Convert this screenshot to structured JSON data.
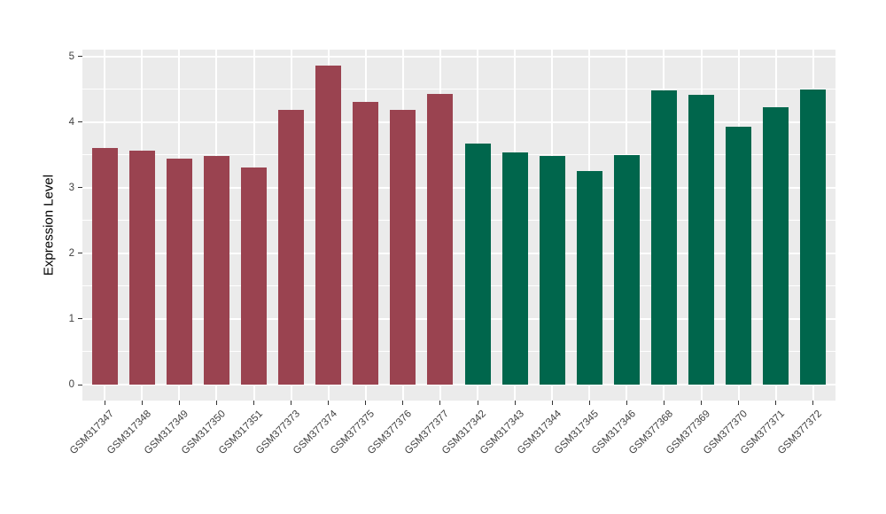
{
  "chart_data": {
    "type": "bar",
    "title": "",
    "xlabel": "",
    "ylabel": "Expression Level",
    "ylim": [
      0,
      5
    ],
    "yticks": [
      0,
      1,
      2,
      3,
      4,
      5
    ],
    "grid": "white major gridlines at integers, white minor gridlines at halves, vertical white gridlines at bar centers",
    "legend_position": "none",
    "panel_background": "#EBEBEB",
    "gridline_color": "#FFFFFF",
    "axis_text_color": "#404040",
    "axis_title_color": "#000000",
    "categories": [
      "GSM317347",
      "GSM317348",
      "GSM317349",
      "GSM317350",
      "GSM317351",
      "GSM377373",
      "GSM377374",
      "GSM377375",
      "GSM377376",
      "GSM377377",
      "GSM317342",
      "GSM317343",
      "GSM317344",
      "GSM317345",
      "GSM317346",
      "GSM377368",
      "GSM377369",
      "GSM377370",
      "GSM377371",
      "GSM377372"
    ],
    "values": [
      3.61,
      3.57,
      3.44,
      3.48,
      3.31,
      4.18,
      4.86,
      4.3,
      4.18,
      4.43,
      3.67,
      3.54,
      3.48,
      3.25,
      3.49,
      4.48,
      4.42,
      3.93,
      4.23,
      4.5
    ],
    "bar_groups": [
      0,
      0,
      0,
      0,
      0,
      0,
      0,
      0,
      0,
      0,
      1,
      1,
      1,
      1,
      1,
      1,
      1,
      1,
      1,
      1
    ],
    "group_colors": [
      "#9A4350",
      "#00664C"
    ]
  }
}
